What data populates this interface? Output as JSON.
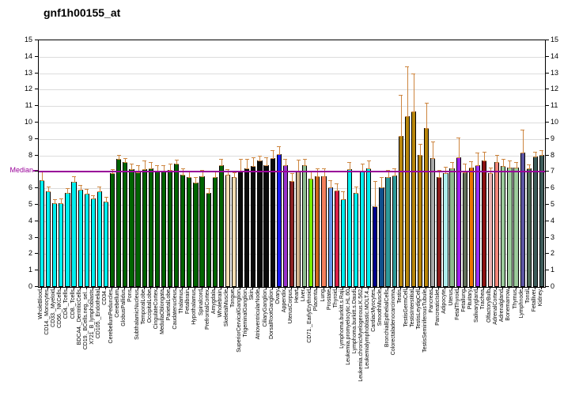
{
  "title": "gnf1h00155_at",
  "chart_data": {
    "type": "bar",
    "title": "gnf1h00155_at",
    "xlabel": "",
    "ylabel": "",
    "ylim": [
      0,
      15
    ],
    "yticks": [
      0,
      1,
      2,
      3,
      4,
      5,
      6,
      7,
      8,
      9,
      10,
      11,
      12,
      13,
      14,
      15
    ],
    "grid": true,
    "legend_position": "none",
    "background_color": "#ffffff",
    "grid_color": "#dcdcdc",
    "error_bar_color": "#CD853F",
    "median_line": {
      "label": "Median",
      "value": 7.0,
      "color": "#990099"
    },
    "bars": [
      {
        "label": "WholeBlood",
        "value": 6.5,
        "hi": 7.0,
        "color": "#00EFEF"
      },
      {
        "label": "CD14._Monocytes",
        "value": 5.8,
        "hi": 6.1,
        "color": "#00EFEF"
      },
      {
        "label": "CD33._Myeloid",
        "value": 5.1,
        "hi": 5.35,
        "color": "#00EFEF"
      },
      {
        "label": "CD56._NKCells",
        "value": 5.1,
        "hi": 5.4,
        "color": "#00EFEF"
      },
      {
        "label": "CD4._Tcells",
        "value": 5.7,
        "hi": 6.0,
        "color": "#00EFEF"
      },
      {
        "label": "CD8._Tcells",
        "value": 6.4,
        "hi": 6.75,
        "color": "#00EFEF"
      },
      {
        "label": "BDCA4._DentriticCells",
        "value": 5.9,
        "hi": 6.2,
        "color": "#00EFEF"
      },
      {
        "label": "CD19._BCells.neg._sel..",
        "value": 5.65,
        "hi": 5.95,
        "color": "#00EFEF"
      },
      {
        "label": "X721_B_lymphoblasts",
        "value": 5.4,
        "hi": 5.6,
        "color": "#00EFEF"
      },
      {
        "label": "CD105._Endothelial",
        "value": 5.8,
        "hi": 6.1,
        "color": "#00EFEF"
      },
      {
        "label": "CD34.",
        "value": 5.2,
        "hi": 5.5,
        "color": "#00EFEF"
      },
      {
        "label": "CerebellumPeduncles",
        "value": 6.9,
        "hi": 7.15,
        "color": "#006400"
      },
      {
        "label": "Cerebellum",
        "value": 7.8,
        "hi": 8.05,
        "color": "#006400"
      },
      {
        "label": "GlobusPallidus",
        "value": 7.6,
        "hi": 7.85,
        "color": "#006400"
      },
      {
        "label": "Pons",
        "value": 7.15,
        "hi": 7.5,
        "color": "#006400"
      },
      {
        "label": "SubthalamicNucleus",
        "value": 6.95,
        "hi": 7.4,
        "color": "#006400"
      },
      {
        "label": "TemporalLobe",
        "value": 7.15,
        "hi": 7.7,
        "color": "#006400"
      },
      {
        "label": "OccipitalLobe",
        "value": 7.2,
        "hi": 7.6,
        "color": "#006400"
      },
      {
        "label": "CingulateCortex",
        "value": 7.0,
        "hi": 7.4,
        "color": "#006400"
      },
      {
        "label": "MedullaOblongata",
        "value": 7.0,
        "hi": 7.4,
        "color": "#006400"
      },
      {
        "label": "ParietalLobe",
        "value": 7.1,
        "hi": 7.5,
        "color": "#006400"
      },
      {
        "label": "Caudatenucleus",
        "value": 7.5,
        "hi": 7.75,
        "color": "#006400"
      },
      {
        "label": "Thalamus",
        "value": 6.85,
        "hi": 7.2,
        "color": "#006400"
      },
      {
        "label": "Fetalbrain",
        "value": 6.7,
        "hi": 7.0,
        "color": "#006400"
      },
      {
        "label": "Hypothalamus",
        "value": 6.35,
        "hi": 6.7,
        "color": "#006400"
      },
      {
        "label": "Spinalcord",
        "value": 6.75,
        "hi": 7.1,
        "color": "#006400"
      },
      {
        "label": "PrefrontalCortex",
        "value": 5.7,
        "hi": 6.0,
        "color": "#006400"
      },
      {
        "label": "Amygdala",
        "value": 6.7,
        "hi": 7.0,
        "color": "#006400"
      },
      {
        "label": "Wholebrain",
        "value": 7.4,
        "hi": 7.8,
        "color": "#006400"
      },
      {
        "label": "SkeletalMuscle",
        "value": 6.85,
        "hi": 7.15,
        "color": "#F5DEB3"
      },
      {
        "label": "Tongue",
        "value": 6.7,
        "hi": 6.95,
        "color": "#F5DEB3"
      },
      {
        "label": "SuperiorCervicalGanglion",
        "value": 7.05,
        "hi": 7.8,
        "color": "#0A0A0A"
      },
      {
        "label": "TrigeminalGanglion",
        "value": 7.2,
        "hi": 7.8,
        "color": "#0A0A0A"
      },
      {
        "label": "Skin",
        "value": 7.35,
        "hi": 7.9,
        "color": "#0A0A0A"
      },
      {
        "label": "AtrioventricularNode",
        "value": 7.7,
        "hi": 8.0,
        "color": "#0A0A0A"
      },
      {
        "label": "CiliaryGanglion",
        "value": 7.4,
        "hi": 7.9,
        "color": "#0A0A0A"
      },
      {
        "label": "DorsalRootGanglion",
        "value": 7.85,
        "hi": 8.3,
        "color": "#0A0A0A"
      },
      {
        "label": "Ovary",
        "value": 8.1,
        "hi": 8.55,
        "color": "#1A1AF5"
      },
      {
        "label": "Appendix",
        "value": 7.4,
        "hi": 7.8,
        "color": "#9932CC"
      },
      {
        "label": "UterusCorpus",
        "value": 6.45,
        "hi": 6.9,
        "color": "#8B2323"
      },
      {
        "label": "Heart",
        "value": 7.05,
        "hi": 7.75,
        "color": "#D2B48C"
      },
      {
        "label": "Liver",
        "value": 7.4,
        "hi": 7.8,
        "color": "#8FBC8F"
      },
      {
        "label": "CD71._EarlyErythroid",
        "value": 6.6,
        "hi": 7.0,
        "color": "#76EE00"
      },
      {
        "label": "Placenta",
        "value": 6.75,
        "hi": 7.2,
        "color": "#CD661D"
      },
      {
        "label": "Lung",
        "value": 6.75,
        "hi": 7.2,
        "color": "#F4805C"
      },
      {
        "label": "Prostate",
        "value": 6.05,
        "hi": 6.5,
        "color": "#6495ED"
      },
      {
        "label": "Thyroid",
        "value": 5.85,
        "hi": 6.3,
        "color": "#DC2048"
      },
      {
        "label": "Lymphoma.burkitt.s.Raji",
        "value": 5.35,
        "hi": 5.8,
        "color": "#00EFEF"
      },
      {
        "label": "Leukemia.promyelocytic.HL.60",
        "value": 7.15,
        "hi": 7.6,
        "color": "#00EFEF"
      },
      {
        "label": "Lymphoma.burkitt.s.Daudi",
        "value": 5.7,
        "hi": 6.1,
        "color": "#00EFEF"
      },
      {
        "label": "Leukemia.chronicMyelogenous.K.562",
        "value": 7.0,
        "hi": 7.5,
        "color": "#00EFEF"
      },
      {
        "label": "Leukemialymphoblastic.MOLT.4.",
        "value": 7.2,
        "hi": 7.7,
        "color": "#00EFEF"
      },
      {
        "label": "CardiacMyocytes",
        "value": 4.9,
        "hi": 6.45,
        "color": "#00008B"
      },
      {
        "label": "SmoothMuscle",
        "value": 6.05,
        "hi": 6.7,
        "color": "#104E8B"
      },
      {
        "label": "BronchialEpithelialCells",
        "value": 6.7,
        "hi": 7.1,
        "color": "#2E9999"
      },
      {
        "label": "Colorectaladenocarcinoma",
        "value": 6.8,
        "hi": 7.2,
        "color": "#2E9999"
      },
      {
        "label": "Testis",
        "value": 9.2,
        "hi": 11.7,
        "color": "#B8860B"
      },
      {
        "label": "TestisGermCell",
        "value": 10.4,
        "hi": 13.4,
        "color": "#B8860B"
      },
      {
        "label": "TestisInterstitial",
        "value": 10.65,
        "hi": 13.0,
        "color": "#B8860B"
      },
      {
        "label": "TestisLeydigCell",
        "value": 8.05,
        "hi": 8.7,
        "color": "#B8860B"
      },
      {
        "label": "TestisSeminiferousTubule",
        "value": 9.65,
        "hi": 11.2,
        "color": "#B8860B"
      },
      {
        "label": "Pancreas",
        "value": 7.85,
        "hi": 8.85,
        "color": "#A9A9A9"
      },
      {
        "label": "PancreaticIslet",
        "value": 6.7,
        "hi": 7.1,
        "color": "#8B1A1A"
      },
      {
        "label": "Adipocyte",
        "value": 6.9,
        "hi": 7.3,
        "color": "#AFEEEE"
      },
      {
        "label": "Uterus",
        "value": 7.2,
        "hi": 7.6,
        "color": "#8FBC8F"
      },
      {
        "label": "FetalThyroid",
        "value": 7.9,
        "hi": 9.1,
        "color": "#A020F0"
      },
      {
        "label": "Fetallung",
        "value": 6.95,
        "hi": 7.5,
        "color": "#62705A"
      },
      {
        "label": "Pituitary",
        "value": 7.25,
        "hi": 7.65,
        "color": "#EE7600"
      },
      {
        "label": "Salivarygland",
        "value": 7.4,
        "hi": 8.15,
        "color": "#9B30FF"
      },
      {
        "label": "Trachea",
        "value": 7.7,
        "hi": 8.2,
        "color": "#8B1010"
      },
      {
        "label": "OlfactoryBulb",
        "value": 6.9,
        "hi": 7.25,
        "color": "#EEB4B4"
      },
      {
        "label": "AdrenalCortex",
        "value": 7.6,
        "hi": 8.05,
        "color": "#F4867A"
      },
      {
        "label": "Adrenalgland",
        "value": 7.35,
        "hi": 7.8,
        "color": "#9CCB9C"
      },
      {
        "label": "Bonemarrow",
        "value": 7.25,
        "hi": 7.7,
        "color": "#9CCB9C"
      },
      {
        "label": "Thymus",
        "value": 7.25,
        "hi": 7.6,
        "color": "#9CCB9C"
      },
      {
        "label": "Lymphnode",
        "value": 8.15,
        "hi": 9.55,
        "color": "#5C54A4"
      },
      {
        "label": "Tonsil",
        "value": 7.2,
        "hi": 7.45,
        "color": "#4F6D59"
      },
      {
        "label": "Fetalliver",
        "value": 7.95,
        "hi": 8.2,
        "color": "#3D5C5A"
      },
      {
        "label": "Kidney",
        "value": 8.05,
        "hi": 8.3,
        "color": "#3D5C5A"
      }
    ]
  }
}
